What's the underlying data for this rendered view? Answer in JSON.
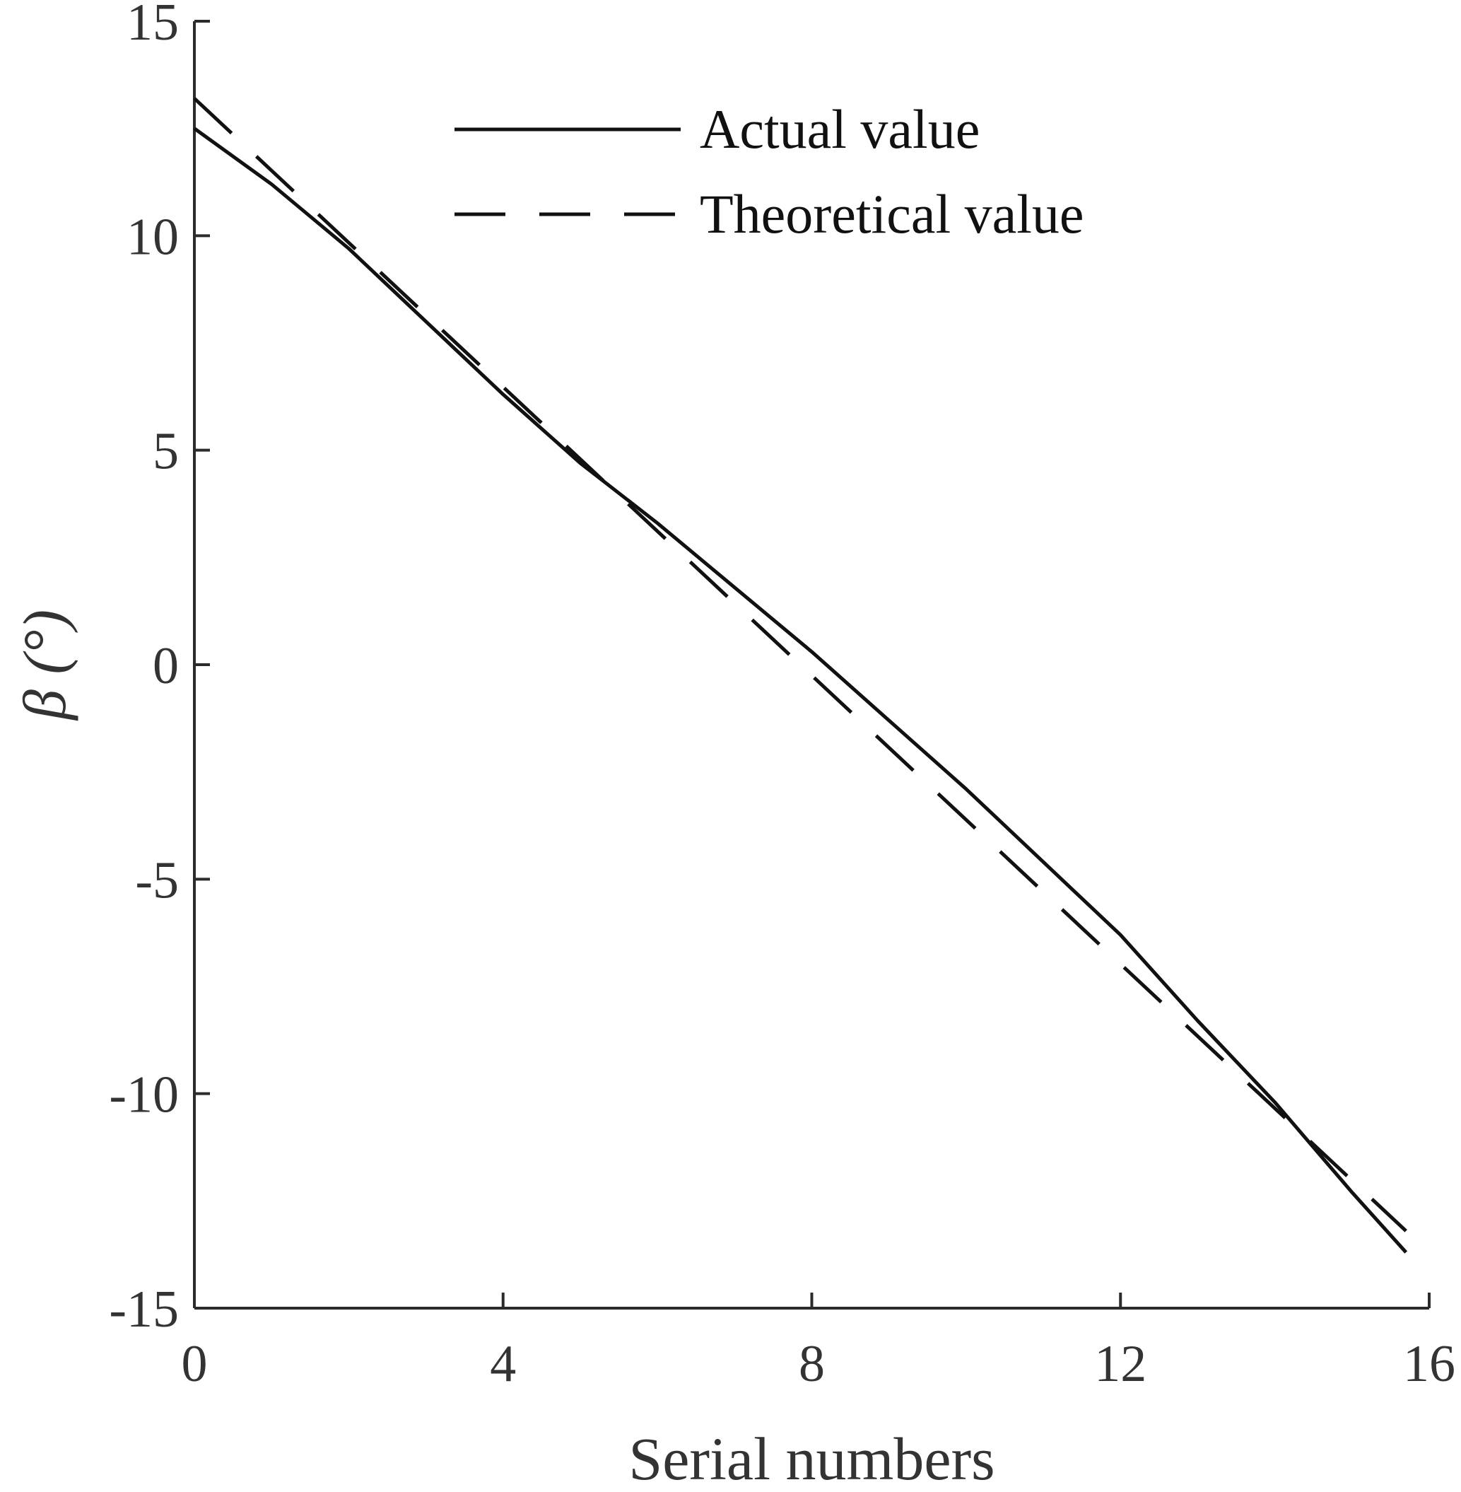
{
  "chart_data": {
    "type": "line",
    "title": "",
    "xlabel": "Serial numbers",
    "ylabel": "β (°)",
    "xlim": [
      0,
      16
    ],
    "ylim": [
      -15,
      15
    ],
    "xticks": [
      0,
      4,
      8,
      12,
      16
    ],
    "yticks": [
      15,
      10,
      5,
      0,
      -5,
      -10,
      -15
    ],
    "xtick_labels": [
      "0",
      "4",
      "8",
      "12",
      "16"
    ],
    "ytick_labels": [
      "15",
      "10",
      "5",
      "0",
      "-5",
      "-10",
      "-15"
    ],
    "grid": false,
    "legend": {
      "position": "top-right",
      "boxed": false
    },
    "series": [
      {
        "name": "Actual value",
        "style": "solid",
        "color": "#111111",
        "x": [
          0,
          1,
          2,
          3,
          4,
          5,
          6,
          7,
          8,
          9,
          10,
          11,
          12,
          13,
          14,
          15,
          15.7
        ],
        "y": [
          12.5,
          11.2,
          9.7,
          8.0,
          6.3,
          4.7,
          3.3,
          1.8,
          0.3,
          -1.3,
          -2.9,
          -4.6,
          -6.3,
          -8.3,
          -10.2,
          -12.3,
          -13.7
        ]
      },
      {
        "name": "Theoretical value",
        "style": "dashed",
        "color": "#111111",
        "x": [
          0,
          15.7
        ],
        "y": [
          13.2,
          -13.2
        ]
      }
    ]
  }
}
